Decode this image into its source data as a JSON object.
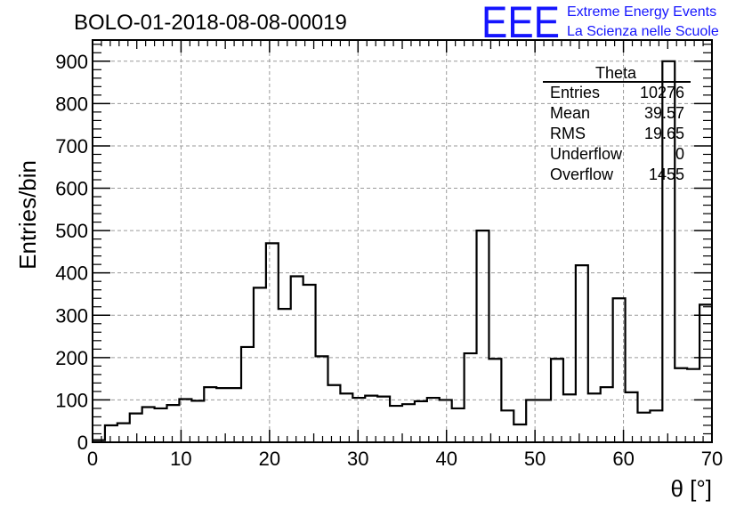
{
  "chart_data": {
    "type": "histogram",
    "title": "BOLO-01-2018-08-08-00019",
    "xlabel": "θ [°]",
    "ylabel": "Entries/bin",
    "xlim": [
      0,
      70
    ],
    "ylim": [
      0,
      950
    ],
    "grid": true,
    "x_ticks": [
      "0",
      "10",
      "20",
      "30",
      "40",
      "50",
      "60",
      "70"
    ],
    "y_ticks": [
      "0",
      "100",
      "200",
      "300",
      "400",
      "500",
      "600",
      "700",
      "800",
      "900"
    ],
    "bin_width": 1.4,
    "x_start": 0,
    "values": [
      5,
      40,
      45,
      68,
      83,
      80,
      88,
      102,
      98,
      130,
      128,
      128,
      225,
      365,
      470,
      315,
      392,
      372,
      203,
      135,
      115,
      105,
      110,
      108,
      86,
      90,
      97,
      105,
      100,
      80,
      210,
      500,
      197,
      75,
      42,
      100,
      100,
      197,
      113,
      418,
      115,
      130,
      340,
      118,
      70,
      75,
      900,
      175,
      173,
      325
    ]
  },
  "stats_box": {
    "name": "Theta",
    "rows": [
      {
        "label": "Entries",
        "value": "10276"
      },
      {
        "label": "Mean",
        "value": "39.57"
      },
      {
        "label": "RMS",
        "value": "19.65"
      },
      {
        "label": "Underflow",
        "value": "0"
      },
      {
        "label": "Overflow",
        "value": "1455"
      }
    ]
  },
  "logo": {
    "mark": "EEE",
    "line1": "Extreme Energy Events",
    "line2": "La Scienza nelle Scuole",
    "color": "#1515ff"
  }
}
